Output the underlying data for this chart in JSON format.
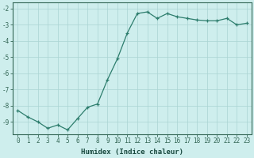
{
  "x": [
    0,
    1,
    2,
    3,
    4,
    5,
    6,
    7,
    8,
    9,
    10,
    11,
    12,
    13,
    14,
    15,
    16,
    17,
    18,
    19,
    20,
    21,
    22,
    23
  ],
  "y": [
    -8.3,
    -8.7,
    -9.0,
    -9.4,
    -9.2,
    -9.5,
    -8.8,
    -8.1,
    -7.9,
    -6.4,
    -5.1,
    -3.5,
    -2.3,
    -2.2,
    -2.6,
    -2.3,
    -2.5,
    -2.6,
    -2.7,
    -2.75,
    -2.75,
    -2.6,
    -3.0,
    -2.9
  ],
  "xlim": [
    -0.5,
    23.5
  ],
  "ylim": [
    -9.75,
    -1.6
  ],
  "yticks": [
    -9,
    -8,
    -7,
    -6,
    -5,
    -4,
    -3,
    -2
  ],
  "xticks": [
    0,
    1,
    2,
    3,
    4,
    5,
    6,
    7,
    8,
    9,
    10,
    11,
    12,
    13,
    14,
    15,
    16,
    17,
    18,
    19,
    20,
    21,
    22,
    23
  ],
  "xlabel": "Humidex (Indice chaleur)",
  "line_color": "#2d7d6d",
  "marker": "+",
  "bg_color": "#ceeeed",
  "grid_color": "#aad4d2",
  "spine_color": "#336655",
  "tick_color": "#336655",
  "text_color": "#1a4a40",
  "tick_label_fontsize": 5.5,
  "xlabel_fontsize": 6.5
}
